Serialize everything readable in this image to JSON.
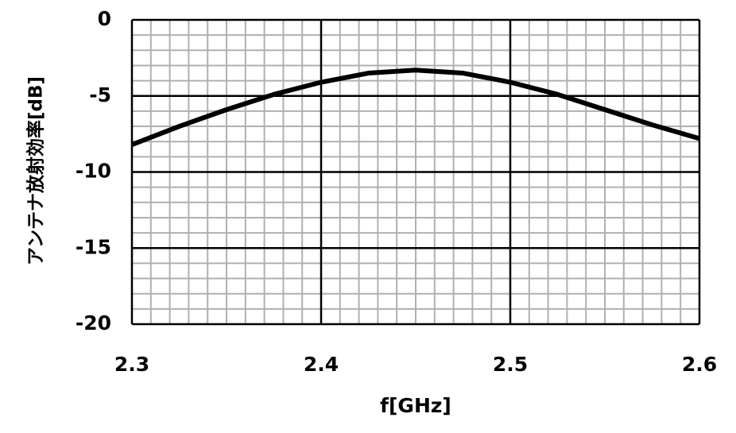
{
  "chart_data": {
    "type": "line",
    "x_label": "f[GHz]",
    "y_label": "アンテナ放射効率[dB]",
    "x": [
      2.3,
      2.325,
      2.35,
      2.375,
      2.4,
      2.425,
      2.45,
      2.475,
      2.5,
      2.525,
      2.55,
      2.575,
      2.6
    ],
    "series": [
      {
        "color": "#000000",
        "values": [
          -8.2,
          -7.0,
          -5.9,
          -4.9,
          -4.1,
          -3.5,
          -3.3,
          -3.5,
          -4.1,
          -4.9,
          -5.9,
          -6.9,
          -7.8
        ]
      }
    ],
    "xlim": [
      2.3,
      2.6
    ],
    "ylim": [
      -20,
      0
    ],
    "xticks": [
      2.3,
      2.4,
      2.5,
      2.6
    ],
    "yticks": [
      0,
      -5,
      -10,
      -15,
      -20
    ],
    "minor_xticks": [
      2.31,
      2.32,
      2.33,
      2.34,
      2.35,
      2.36,
      2.37,
      2.38,
      2.39,
      2.41,
      2.42,
      2.43,
      2.44,
      2.45,
      2.46,
      2.47,
      2.48,
      2.49,
      2.51,
      2.52,
      2.53,
      2.54,
      2.55,
      2.56,
      2.57,
      2.58,
      2.59
    ],
    "minor_yticks": [
      -1,
      -2,
      -3,
      -4,
      -6,
      -7,
      -8,
      -9,
      -11,
      -12,
      -13,
      -14,
      -16,
      -17,
      -18,
      -19
    ],
    "grid": true
  }
}
